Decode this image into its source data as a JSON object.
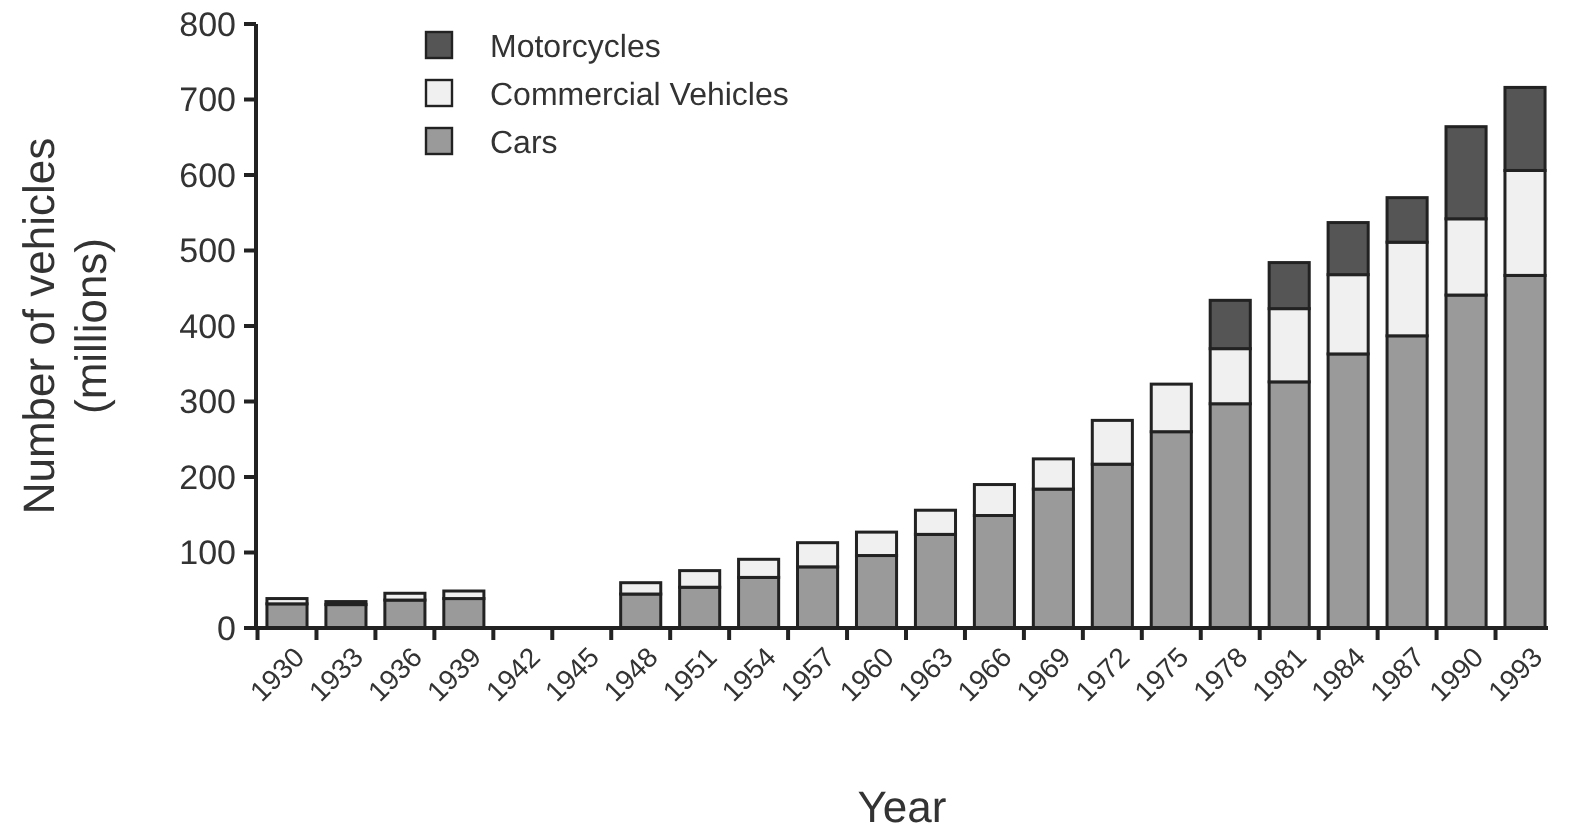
{
  "chart_data": {
    "type": "bar",
    "stacked": true,
    "xlabel": "Year",
    "ylabel": "Number of vehicles\n(millions)",
    "categories": [
      "1930",
      "1933",
      "1936",
      "1939",
      "1942",
      "1945",
      "1948",
      "1951",
      "1954",
      "1957",
      "1960",
      "1963",
      "1966",
      "1969",
      "1972",
      "1975",
      "1978",
      "1981",
      "1984",
      "1987",
      "1990",
      "1993"
    ],
    "series": [
      {
        "name": "Cars",
        "color": "#9a9a9a",
        "values": [
          32,
          31,
          37,
          39,
          null,
          null,
          45,
          54,
          67,
          81,
          96,
          124,
          149,
          184,
          217,
          260,
          297,
          326,
          363,
          387,
          441,
          467
        ]
      },
      {
        "name": "Commercial Vehicles",
        "color": "#f0f0f0",
        "values": [
          7,
          null,
          9,
          10,
          null,
          null,
          15,
          22,
          24,
          32,
          31,
          32,
          41,
          40,
          58,
          63,
          73,
          97,
          105,
          124,
          101,
          139
        ]
      },
      {
        "name": "Motorcycles",
        "color": "#555555",
        "values": [
          null,
          4,
          null,
          null,
          null,
          null,
          null,
          null,
          null,
          null,
          null,
          null,
          null,
          null,
          null,
          null,
          64,
          61,
          69,
          59,
          122,
          110
        ]
      }
    ],
    "ylim": [
      0,
      800
    ],
    "yticks": [
      0,
      100,
      200,
      300,
      400,
      500,
      600,
      700,
      800
    ],
    "grid": false,
    "legend": "top left"
  }
}
